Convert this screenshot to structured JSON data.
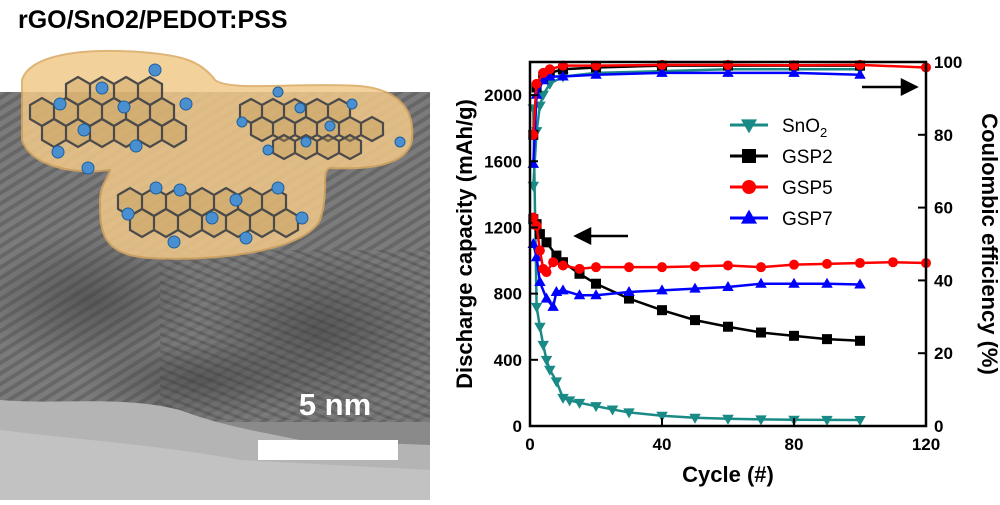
{
  "figure_title": "rGO/SnO2/PEDOT:PSS",
  "scale_bar_label": "5 nm",
  "colors": {
    "SnO2": "#1a8a86",
    "GSP2": "#000000",
    "GSP5": "#ff0000",
    "GSP7": "#0000ff",
    "shell": "#f2c98a",
    "particle": "#4a90d0"
  },
  "chart_data": {
    "type": "line",
    "xlabel": "Cycle (#)",
    "ylabel_left": "Discharge capacity (mAh/g)",
    "ylabel_right": "Coulombic efficiency (%)",
    "xlim": [
      0,
      120
    ],
    "xticks": [
      0,
      40,
      80,
      120
    ],
    "ylim_left": [
      0,
      2200
    ],
    "yticks_left": [
      0,
      400,
      800,
      1200,
      1600,
      2000
    ],
    "ylim_right": [
      0,
      100
    ],
    "yticks_right": [
      0,
      20,
      40,
      60,
      80,
      100
    ],
    "legend_position": "top-right",
    "series": [
      {
        "name": "SnO2",
        "name_main": "SnO",
        "name_sub": "2",
        "color_key": "SnO2",
        "marker": "triangle-down",
        "axis": "left",
        "x": [
          1,
          2,
          3,
          4,
          5,
          6,
          8,
          10,
          12,
          15,
          20,
          25,
          30,
          40,
          50,
          60,
          70,
          80,
          90,
          100
        ],
        "y": [
          1920,
          720,
          600,
          490,
          400,
          340,
          270,
          170,
          155,
          140,
          120,
          100,
          82,
          62,
          50,
          44,
          40,
          38,
          37,
          36
        ]
      },
      {
        "name": "GSP2",
        "color_key": "GSP2",
        "marker": "square",
        "axis": "left",
        "x": [
          1,
          2,
          3,
          5,
          8,
          10,
          15,
          20,
          30,
          40,
          50,
          60,
          70,
          80,
          90,
          100
        ],
        "y": [
          1250,
          1220,
          1160,
          1110,
          1030,
          990,
          920,
          860,
          770,
          700,
          640,
          600,
          565,
          545,
          525,
          515
        ]
      },
      {
        "name": "GSP5",
        "color_key": "GSP5",
        "marker": "circle",
        "axis": "left",
        "x": [
          1,
          2,
          3,
          4,
          5,
          7,
          10,
          15,
          20,
          30,
          40,
          50,
          60,
          70,
          80,
          90,
          100,
          110,
          120
        ],
        "y": [
          1260,
          1210,
          1060,
          950,
          930,
          990,
          970,
          950,
          960,
          960,
          960,
          965,
          970,
          960,
          975,
          980,
          985,
          990,
          985
        ]
      },
      {
        "name": "GSP7",
        "color_key": "GSP7",
        "marker": "triangle-up",
        "axis": "left",
        "x": [
          1,
          2,
          3,
          5,
          7,
          8,
          10,
          15,
          20,
          30,
          40,
          50,
          60,
          70,
          80,
          90,
          100
        ],
        "y": [
          1100,
          1020,
          870,
          770,
          720,
          810,
          820,
          790,
          790,
          810,
          820,
          830,
          840,
          860,
          860,
          860,
          855
        ]
      },
      {
        "name": "SnO2 efficiency",
        "color_key": "SnO2",
        "marker": "triangle-down",
        "axis": "right",
        "x": [
          1,
          2,
          3,
          4,
          6,
          10,
          20,
          40,
          60,
          80,
          100
        ],
        "y": [
          66,
          81,
          88,
          91,
          94,
          96,
          97,
          97.5,
          98,
          98,
          98
        ]
      },
      {
        "name": "GSP2 efficiency",
        "color_key": "GSP2",
        "marker": "square",
        "axis": "right",
        "x": [
          1,
          2,
          4,
          6,
          10,
          20,
          40,
          60,
          80,
          100
        ],
        "y": [
          80,
          93,
          96,
          97,
          98,
          98.5,
          99,
          99,
          99,
          99
        ]
      },
      {
        "name": "GSP5 efficiency",
        "color_key": "GSP5",
        "marker": "circle",
        "axis": "right",
        "x": [
          1,
          2,
          4,
          6,
          10,
          20,
          40,
          60,
          80,
          100,
          120
        ],
        "y": [
          80,
          94,
          97,
          98,
          99,
          99,
          99.2,
          99.2,
          99.1,
          99.2,
          98.5
        ]
      },
      {
        "name": "GSP7 efficiency",
        "color_key": "GSP7",
        "marker": "triangle-up",
        "axis": "right",
        "x": [
          1,
          2,
          4,
          6,
          10,
          20,
          40,
          60,
          80,
          100
        ],
        "y": [
          72,
          91,
          95,
          96,
          96,
          96.5,
          97,
          97,
          97,
          96.5
        ]
      }
    ]
  }
}
